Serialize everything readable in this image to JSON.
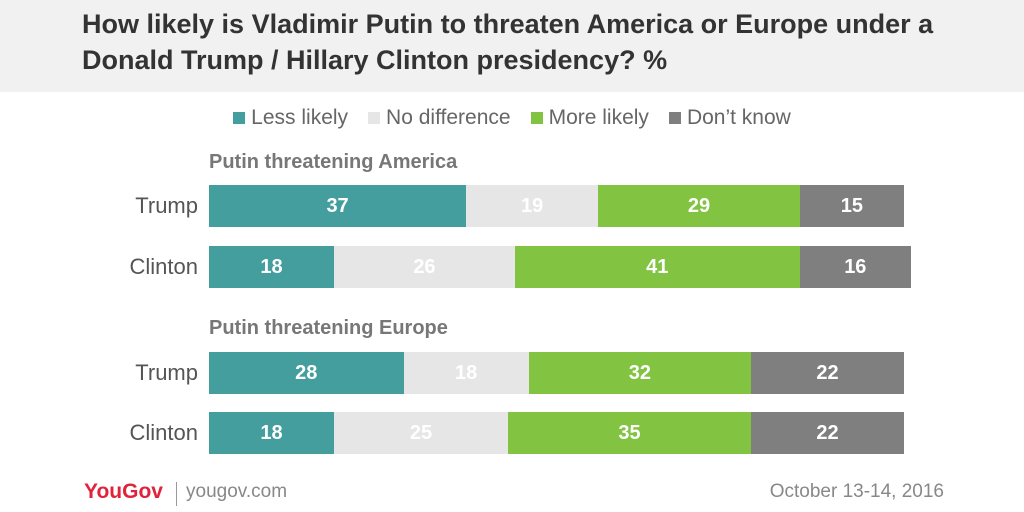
{
  "title": "How likely is Vladimir Putin to threaten America or Europe under a Donald Trump / Hillary Clinton presidency? %",
  "legend": [
    {
      "label": "Less likely",
      "color": "#439e9d"
    },
    {
      "label": "No difference",
      "color": "#e6e6e6"
    },
    {
      "label": "More likely",
      "color": "#82c341"
    },
    {
      "label": "Don’t know",
      "color": "#7f7f7f"
    }
  ],
  "footer": {
    "logo": "YouGov",
    "site": "yougov.com",
    "date": "October 13-14, 2016"
  },
  "chart_data": {
    "type": "bar",
    "stacked": true,
    "orientation": "horizontal",
    "series_names": [
      "Less likely",
      "No difference",
      "More likely",
      "Don’t know"
    ],
    "groups": [
      {
        "title": "Putin threatening America",
        "rows": [
          {
            "label": "Trump",
            "values": [
              37,
              19,
              29,
              15
            ]
          },
          {
            "label": "Clinton",
            "values": [
              18,
              26,
              41,
              16
            ]
          }
        ]
      },
      {
        "title": "Putin threatening Europe",
        "rows": [
          {
            "label": "Trump",
            "values": [
              28,
              18,
              32,
              22
            ]
          },
          {
            "label": "Clinton",
            "values": [
              18,
              25,
              35,
              22
            ]
          }
        ]
      }
    ]
  }
}
